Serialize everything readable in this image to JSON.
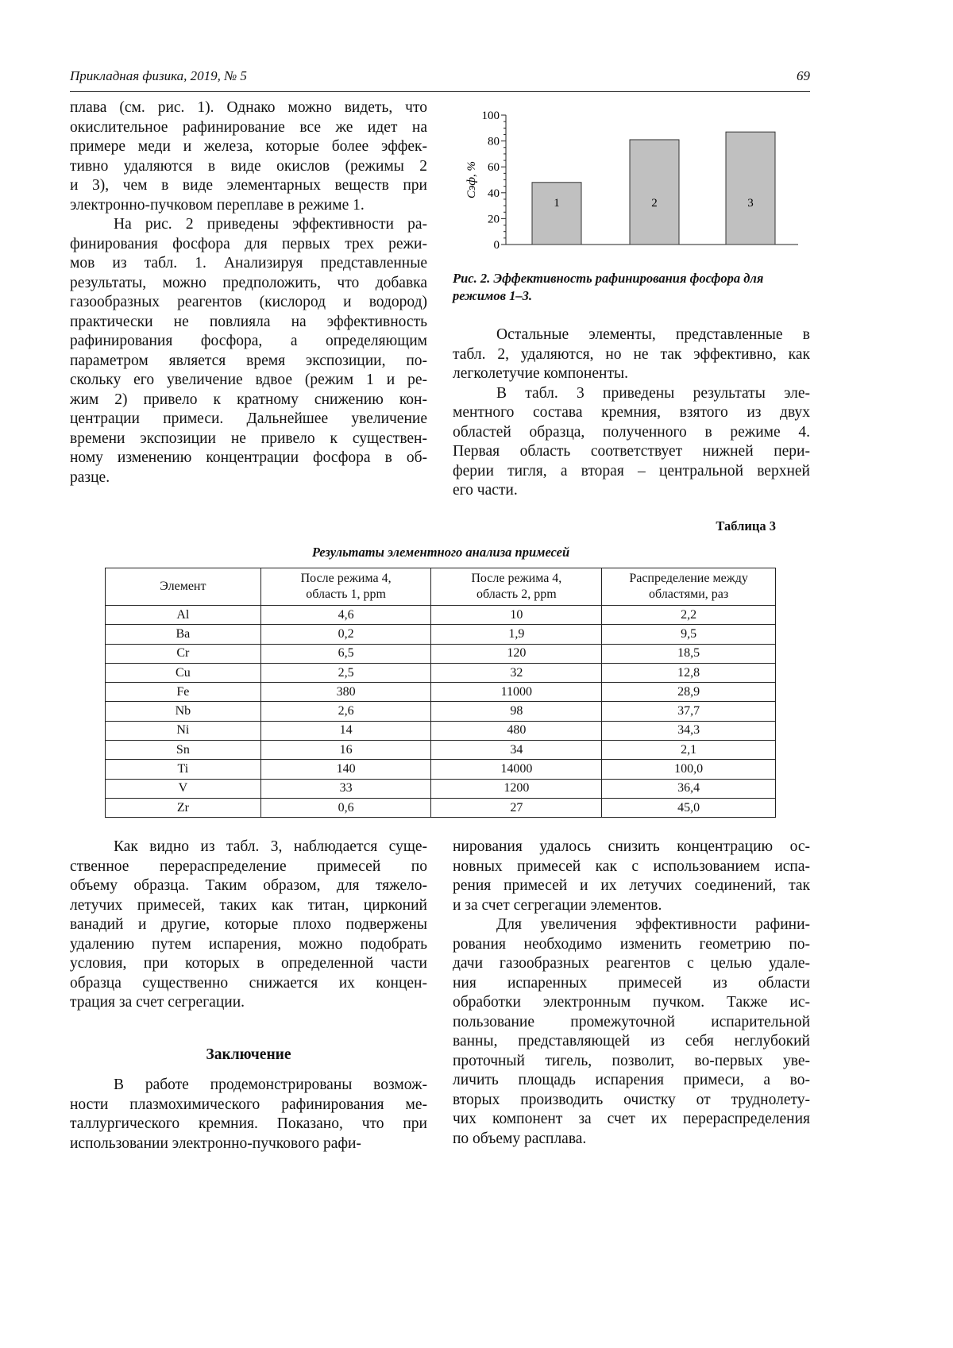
{
  "header": {
    "journal": "Прикладная физика, 2019, № 5",
    "page": "69"
  },
  "left_top": [
    {
      "indent": false,
      "lines": [
        "плава (см. рис. 1). Однако можно видеть, что",
        "окислительное рафинирование все же идет на",
        "примере меди и железа, которые более эффек-",
        "тивно удаляются в виде окислов (режимы 2",
        "и 3), чем в виде элементарных веществ при",
        "электронно-пучковом переплаве в режиме 1."
      ]
    },
    {
      "indent": true,
      "lines": [
        "На рис. 2 приведены эффективности ра-",
        "финирования фосфора для первых трех режи-",
        "мов из табл. 1. Анализируя представленные",
        "результаты, можно предположить, что добавка",
        "газообразных реагентов (кислород и водород)",
        "практически не повлияла на эффективность",
        "рафинирования фосфора, а определяющим",
        "параметром является время экспозиции, по-",
        "скольку его увеличение вдвое (режим 1 и ре-",
        "жим 2) привело к кратному снижению кон-",
        "центрации примеси. Дальнейшее увеличение",
        "времени экспозиции не привело к существен-",
        "ному изменению концентрации фосфора в об-",
        "разце."
      ]
    }
  ],
  "right_top": [
    {
      "indent": true,
      "lines": [
        "Остальные элементы, представленные в",
        "табл. 2, удаляются, но не так эффективно, как",
        "легколетучие компоненты."
      ]
    },
    {
      "indent": true,
      "lines": [
        "В табл. 3 приведены результаты эле-",
        "ментного состава кремния, взятого из двух",
        "областей образца, полученного в режиме 4.",
        "Первая область соответствует нижней пери-",
        "ферии тигля, а вторая – центральной верхней",
        "его части."
      ]
    }
  ],
  "chart_data": {
    "type": "bar",
    "categories": [
      "1",
      "2",
      "3"
    ],
    "values": [
      48,
      81,
      87
    ],
    "ylabel": "Cэф, %",
    "ylim": [
      0,
      100
    ],
    "yticks": [
      0,
      20,
      40,
      60,
      80,
      100
    ],
    "bar_color": "#c0c0c0",
    "caption": "Рис. 2. Эффективность рафинирования фосфора для режимов 1–3."
  },
  "table": {
    "label": "Таблица 3",
    "title": "Результаты элементного анализа примесей",
    "headers": [
      [
        "Элемент"
      ],
      [
        "После режима 4,",
        "область 1, ppm"
      ],
      [
        "После режима 4,",
        "область 2, ppm"
      ],
      [
        "Распределение между",
        "областями, раз"
      ]
    ],
    "rows": [
      [
        "Al",
        "4,6",
        "10",
        "2,2"
      ],
      [
        "Ba",
        "0,2",
        "1,9",
        "9,5"
      ],
      [
        "Cr",
        "6,5",
        "120",
        "18,5"
      ],
      [
        "Cu",
        "2,5",
        "32",
        "12,8"
      ],
      [
        "Fe",
        "380",
        "11000",
        "28,9"
      ],
      [
        "Nb",
        "2,6",
        "98",
        "37,7"
      ],
      [
        "Ni",
        "14",
        "480",
        "34,3"
      ],
      [
        "Sn",
        "16",
        "34",
        "2,1"
      ],
      [
        "Ti",
        "140",
        "14000",
        "100,0"
      ],
      [
        "V",
        "33",
        "1200",
        "36,4"
      ],
      [
        "Zr",
        "0,6",
        "27",
        "45,0"
      ]
    ]
  },
  "left_bottom": [
    {
      "indent": true,
      "lines": [
        "Как видно из табл. 3, наблюдается суще-",
        "ственное перераспределение примесей по",
        "объему образца. Таким образом, для тяжело-",
        "летучих примесей, таких как титан, цирконий",
        "ванадий и другие, которые плохо подвержены",
        "удалению путем испарения, можно подобрать",
        "условия, при которых в определенной части",
        "образца существенно снижается их концен-",
        "трация за счет сегрегации."
      ]
    }
  ],
  "conclusion_heading": "Заключение",
  "left_conclusion": [
    {
      "indent": true,
      "lines": [
        "В работе продемонстрированы возмож-",
        "ности плазмохимического рафинирования ме-",
        "таллургического кремния. Показано, что при",
        "использовании электронно-пучкового рафи-"
      ]
    }
  ],
  "right_bottom": [
    {
      "indent": false,
      "lines": [
        "нирования удалось снизить концентрацию ос-",
        "новных примесей как с использованием испа-",
        "рения примесей и их летучих соединений, так",
        "и за счет сегрегации элементов."
      ]
    },
    {
      "indent": true,
      "lines": [
        "Для увеличения эффективности рафини-",
        "рования необходимо изменить геометрию по-",
        "дачи газообразных реагентов с целью удале-",
        "ния испаренных примесей из области",
        "обработки электронным пучком. Также ис-",
        "пользование промежуточной испарительной",
        "ванны, представляющей из себя неглубокий",
        "проточный тигель, позволит, во-первых уве-",
        "личить площадь испарения примеси, а во-",
        "вторых производить очистку от труднолету-",
        "чих компонент за счет их перераспределения",
        "по объему расплава."
      ]
    }
  ]
}
